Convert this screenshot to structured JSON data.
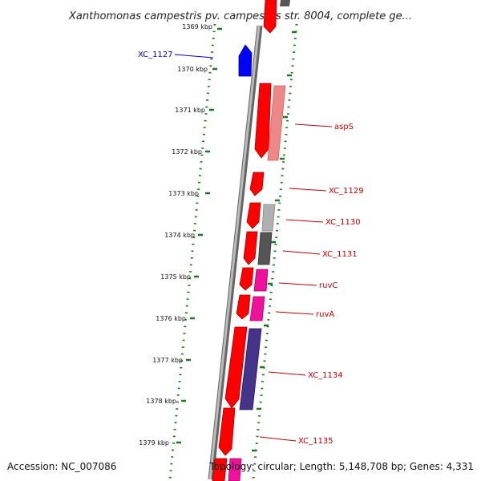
{
  "title": "Xanthomonas campestris pv. campestris str. 8004, complete ge...",
  "footer": {
    "accession": "Accession: NC_007086",
    "summary": "Topology: circular; Length: 5,148,708 bp; Genes: 4,331"
  },
  "scale_labels": [
    "1369 kbp",
    "1370 kbp",
    "1371 kbp",
    "1372 kbp",
    "1373 kbp",
    "1374 kbp",
    "1375 kbp",
    "1376 kbp",
    "1377 kbp",
    "1378 kbp",
    "1379 kbp"
  ],
  "gene_labels": [
    {
      "text": "XC_1127",
      "color": "#0000cc"
    },
    {
      "text": "aspS",
      "color": "#cc0000"
    },
    {
      "text": "XC_1129",
      "color": "#cc0000"
    },
    {
      "text": "XC_1130",
      "color": "#cc0000"
    },
    {
      "text": "XC_1131",
      "color": "#cc0000"
    },
    {
      "text": "ruvC",
      "color": "#cc0000"
    },
    {
      "text": "ruvA",
      "color": "#cc0000"
    },
    {
      "text": "XC_1134",
      "color": "#cc0000"
    },
    {
      "text": "XC_1135",
      "color": "#cc0000"
    }
  ],
  "colors": {
    "backbone": "#888888",
    "tick_dots": "#1a7a1a",
    "gene_forward": "#ff0000",
    "gene_reverse": "#0000ff",
    "cog_pink": "#ee8888",
    "cog_lightgray": "#b0b0b0",
    "cog_darkgray": "#555555",
    "cog_magenta": "#ee1199",
    "cog_purple": "#443388"
  }
}
